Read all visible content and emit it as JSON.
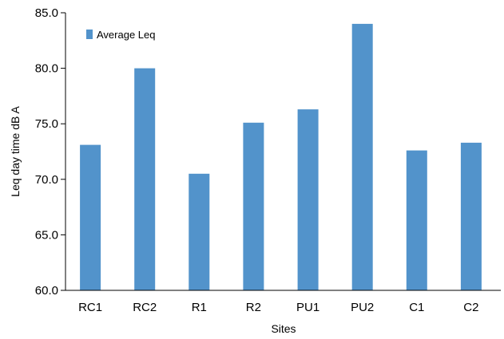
{
  "chart_data": {
    "type": "bar",
    "categories": [
      "RC1",
      "RC2",
      "R1",
      "R2",
      "PU1",
      "PU2",
      "C1",
      "C2"
    ],
    "series": [
      {
        "name": "Average Leq",
        "color": "#5293cb",
        "values": [
          73.1,
          80.0,
          70.5,
          75.1,
          76.3,
          84.0,
          72.6,
          73.3
        ]
      }
    ],
    "xlabel": "Sites",
    "ylabel": "Leq day time dB A",
    "ylim": [
      60,
      85
    ],
    "yticks": [
      "60.0",
      "65.0",
      "70.0",
      "75.0",
      "80.0",
      "85.0"
    ],
    "grid": false,
    "legend_position": "top-left"
  }
}
